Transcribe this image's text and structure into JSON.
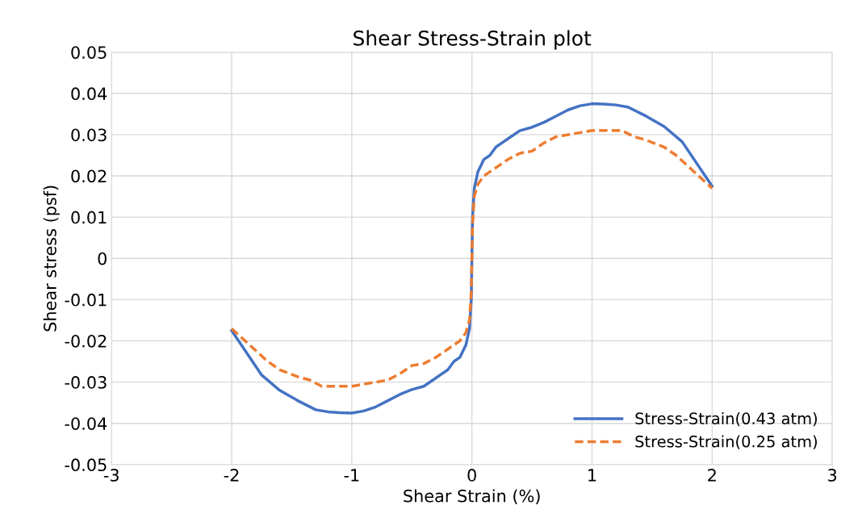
{
  "chart_data": {
    "type": "line",
    "title": "Shear Stress-Strain plot",
    "xlabel": "Shear Strain (%)",
    "ylabel": "Shear stress (psf)",
    "xlim": [
      -3,
      3
    ],
    "xticks": [
      -3,
      -2,
      -1,
      0,
      1,
      2,
      3
    ],
    "ylim": [
      -0.05,
      0.05
    ],
    "yticks": [
      -0.05,
      -0.04,
      -0.03,
      -0.02,
      -0.01,
      0,
      0.01,
      0.02,
      0.03,
      0.04,
      0.05
    ],
    "grid": true,
    "legend": "bottom right",
    "series": [
      {
        "name": "Stress-Strain(0.43 atm)",
        "color": "#4472c4",
        "line_style": "solid",
        "x": [
          -2.0,
          -1.75,
          -1.6,
          -1.45,
          -1.3,
          -1.2,
          -1.1,
          -1.0,
          -0.9,
          -0.8,
          -0.7,
          -0.6,
          -0.5,
          -0.4,
          -0.3,
          -0.25,
          -0.2,
          -0.15,
          -0.1,
          -0.05,
          -0.02,
          -0.005,
          0,
          0.005,
          0.02,
          0.05,
          0.1,
          0.15,
          0.2,
          0.25,
          0.3,
          0.4,
          0.5,
          0.6,
          0.7,
          0.8,
          0.9,
          1.0,
          1.1,
          1.2,
          1.3,
          1.45,
          1.6,
          1.75,
          2.0
        ],
        "values": [
          -0.0175,
          -0.0283,
          -0.032,
          -0.0345,
          -0.0367,
          -0.0372,
          -0.0374,
          -0.0375,
          -0.037,
          -0.036,
          -0.0345,
          -0.033,
          -0.0318,
          -0.031,
          -0.029,
          -0.028,
          -0.027,
          -0.025,
          -0.024,
          -0.021,
          -0.017,
          -0.01,
          0,
          0.01,
          0.017,
          0.021,
          0.024,
          0.025,
          0.027,
          0.028,
          0.029,
          0.031,
          0.0318,
          0.033,
          0.0345,
          0.036,
          0.037,
          0.0375,
          0.0374,
          0.0372,
          0.0367,
          0.0345,
          0.032,
          0.0283,
          0.0175
        ]
      },
      {
        "name": "Stress-Strain(0.25 atm)",
        "color": "#ed7d31",
        "line_style": "dashed",
        "x": [
          -2.0,
          -1.85,
          -1.7,
          -1.6,
          -1.45,
          -1.35,
          -1.25,
          -1.1,
          -1.0,
          -0.9,
          -0.8,
          -0.7,
          -0.6,
          -0.5,
          -0.4,
          -0.3,
          -0.2,
          -0.15,
          -0.1,
          -0.05,
          -0.02,
          -0.005,
          0,
          0.005,
          0.02,
          0.05,
          0.1,
          0.15,
          0.2,
          0.3,
          0.4,
          0.5,
          0.6,
          0.7,
          0.8,
          0.9,
          1.0,
          1.1,
          1.25,
          1.35,
          1.45,
          1.6,
          1.7,
          1.85,
          2.0
        ],
        "values": [
          -0.017,
          -0.021,
          -0.025,
          -0.027,
          -0.0287,
          -0.0295,
          -0.031,
          -0.031,
          -0.031,
          -0.0305,
          -0.03,
          -0.0295,
          -0.028,
          -0.026,
          -0.0255,
          -0.024,
          -0.022,
          -0.021,
          -0.02,
          -0.018,
          -0.015,
          -0.008,
          0,
          0.008,
          0.015,
          0.018,
          0.02,
          0.021,
          0.022,
          0.024,
          0.0255,
          0.026,
          0.028,
          0.0295,
          0.03,
          0.0305,
          0.031,
          0.031,
          0.031,
          0.0295,
          0.0287,
          0.027,
          0.025,
          0.021,
          0.017
        ]
      }
    ]
  }
}
